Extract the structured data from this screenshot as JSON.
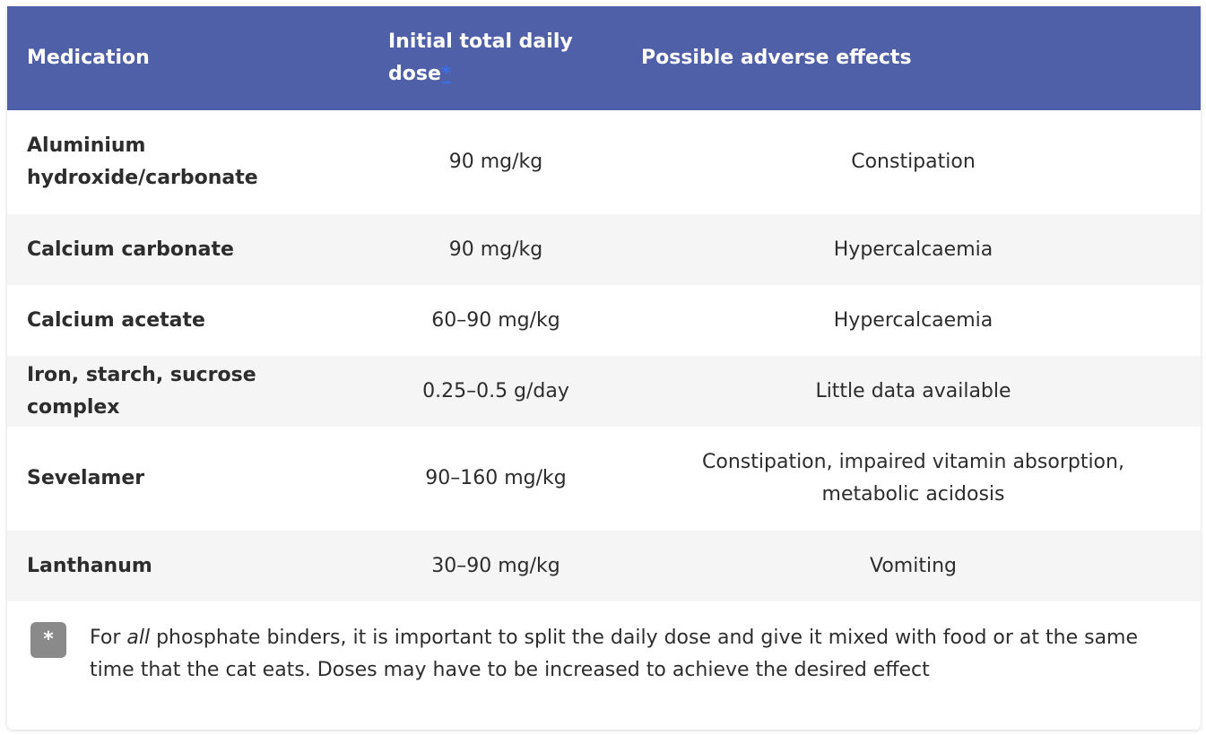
{
  "table": {
    "headers": {
      "medication": "Medication",
      "dose": "Initial total daily dose",
      "dose_marker": "*",
      "effects": "Possible adverse effects"
    },
    "rows": [
      {
        "medication": "Aluminium hydroxide/carbonate",
        "dose": "90 mg/kg",
        "effects": "Constipation"
      },
      {
        "medication": "Calcium carbonate",
        "dose": "90 mg/kg",
        "effects": "Hypercalcaemia"
      },
      {
        "medication": "Calcium acetate",
        "dose": "60–90 mg/kg",
        "effects": "Hypercalcaemia"
      },
      {
        "medication": "Iron, starch, sucrose complex",
        "dose": "0.25–0.5 g/day",
        "effects": "Little data available"
      },
      {
        "medication": "Sevelamer",
        "dose": "90–160 mg/kg",
        "effects": "Constipation, impaired vitamin absorption, metabolic acidosis"
      },
      {
        "medication": "Lanthanum",
        "dose": "30–90 mg/kg",
        "effects": "Vomiting"
      }
    ]
  },
  "footnote": {
    "marker": "*",
    "text_before": "For ",
    "text_emphasis": "all",
    "text_after": " phosphate binders, it is important to split the daily dose and give it mixed with food or at the same time that the cat eats. Doses may have to be increased to achieve the desired effect"
  },
  "colors": {
    "header_bg": "#4f5fa8",
    "header_text": "#ffffff",
    "stripe_bg": "#f5f5f5",
    "link": "#3b6fe3",
    "badge_bg": "#8a8a8a"
  }
}
